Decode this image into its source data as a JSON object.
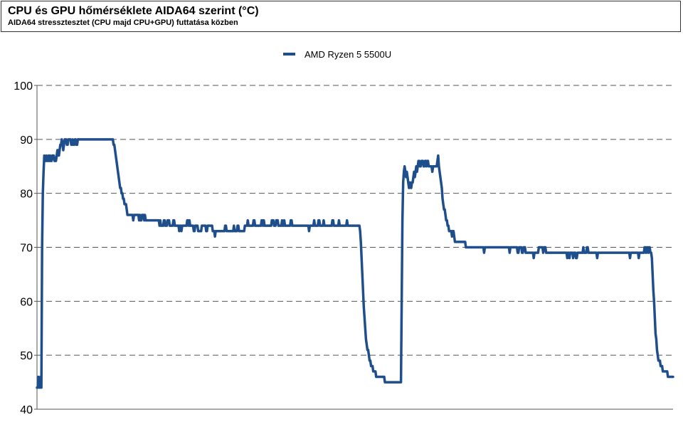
{
  "header": {
    "title": "CPU és GPU hőmérséklete AIDA64 szerint (°C)",
    "subtitle": "AIDA64 stressztesztet (CPU majd CPU+GPU) futtatása közben"
  },
  "chart_data": {
    "type": "line",
    "title": "CPU és GPU hőmérséklete AIDA64 szerint (°C)",
    "subtitle": "AIDA64 stressztesztet (CPU majd CPU+GPU) futtatása közben",
    "xlabel": "",
    "ylabel": "",
    "ylim": [
      40,
      100
    ],
    "yticks": [
      40,
      50,
      60,
      70,
      80,
      90,
      100
    ],
    "grid": "horizontal dashed",
    "legend_position": "top-center",
    "series": [
      {
        "name": "AMD Ryzen 5 5500U",
        "color": "#1f4e8c",
        "values": [
          44,
          44,
          46,
          44,
          44,
          46,
          44,
          70,
          80,
          84,
          87,
          86,
          86,
          87,
          86,
          86,
          87,
          86,
          87,
          86,
          86,
          87,
          87,
          87,
          86,
          86,
          86,
          87,
          88,
          88,
          87,
          88,
          89,
          89,
          90,
          89,
          88,
          89,
          90,
          90,
          90,
          89,
          89,
          90,
          90,
          90,
          90,
          89,
          89,
          90,
          89,
          89,
          90,
          90,
          89,
          89,
          90,
          90,
          90,
          90,
          90,
          90,
          90,
          90,
          90,
          90,
          90,
          90,
          90,
          90,
          90,
          90,
          90,
          90,
          90,
          90,
          90,
          90,
          90,
          90,
          90,
          90,
          90,
          90,
          90,
          90,
          90,
          90,
          90,
          90,
          90,
          90,
          90,
          90,
          90,
          90,
          90,
          90,
          90,
          90,
          90,
          90,
          90,
          90,
          90,
          89,
          89,
          88,
          87,
          86,
          85,
          84,
          83,
          82,
          81,
          81,
          80,
          80,
          79,
          79,
          78,
          78,
          78,
          77,
          76,
          76,
          76,
          76,
          76,
          76,
          76,
          76,
          75,
          76,
          76,
          76,
          76,
          76,
          76,
          76,
          75,
          76,
          75,
          75,
          76,
          76,
          76,
          75,
          76,
          75,
          75,
          75,
          75,
          75,
          75,
          75,
          75,
          75,
          75,
          75,
          75,
          75,
          75,
          75,
          75,
          75,
          75,
          75,
          74,
          75,
          74,
          74,
          74,
          74,
          75,
          75,
          74,
          74,
          74,
          75,
          75,
          75,
          74,
          74,
          74,
          74,
          74,
          75,
          75,
          74,
          74,
          74,
          74,
          74,
          74,
          73,
          74,
          74,
          73,
          74,
          74,
          74,
          74,
          74,
          74,
          74,
          75,
          75,
          74,
          75,
          74,
          74,
          74,
          74,
          74,
          73,
          73,
          74,
          74,
          74,
          74,
          73,
          73,
          73,
          73,
          73,
          74,
          74,
          74,
          74,
          74,
          74,
          73,
          73,
          74,
          74,
          74,
          74,
          74,
          74,
          74,
          73,
          73,
          73,
          72,
          73,
          73,
          73,
          73,
          73,
          73,
          73,
          73,
          73,
          73,
          73,
          73,
          73,
          74,
          74,
          73,
          73,
          73,
          73,
          73,
          73,
          73,
          73,
          73,
          73,
          74,
          73,
          73,
          73,
          73,
          74,
          74,
          73,
          73,
          73,
          73,
          73,
          73,
          73,
          73,
          74,
          74,
          74,
          74,
          75,
          74,
          74,
          74,
          74,
          74,
          74,
          74,
          75,
          75,
          74,
          74,
          74,
          74,
          74,
          74,
          74,
          74,
          74,
          75,
          75,
          74,
          75,
          74,
          74,
          74,
          74,
          74,
          74,
          74,
          74,
          74,
          74,
          75,
          75,
          75,
          74,
          74,
          74,
          75,
          75,
          75,
          74,
          74,
          74,
          74,
          74,
          75,
          74,
          74,
          75,
          74,
          74,
          74,
          74,
          74,
          74,
          74,
          74,
          75,
          75,
          74,
          74,
          74,
          74,
          74,
          74,
          74,
          74,
          74,
          74,
          74,
          74,
          74,
          74,
          74,
          74,
          74,
          74,
          74,
          74,
          74,
          74,
          74,
          73,
          74,
          74,
          74,
          74,
          74,
          74,
          75,
          74,
          74,
          74,
          74,
          74,
          75,
          75,
          74,
          74,
          74,
          74,
          74,
          75,
          74,
          74,
          74,
          74,
          74,
          74,
          74,
          74,
          74,
          74,
          74,
          75,
          75,
          74,
          74,
          74,
          74,
          74,
          74,
          74,
          75,
          74,
          74,
          74,
          74,
          74,
          74,
          74,
          74,
          74,
          74,
          75,
          74,
          74,
          74,
          74,
          74,
          74,
          74,
          74,
          74,
          74,
          74,
          74,
          74,
          74,
          74,
          74,
          74,
          73,
          71,
          68,
          65,
          62,
          59,
          57,
          55,
          53,
          52,
          51,
          51,
          50,
          49,
          49,
          48,
          48,
          48,
          47,
          47,
          47,
          47,
          46,
          46,
          46,
          46,
          46,
          46,
          46,
          46,
          46,
          46,
          46,
          46,
          45,
          45,
          45,
          45,
          45,
          45,
          45,
          45,
          45,
          45,
          45,
          45,
          45,
          45,
          45,
          45,
          45,
          45,
          45,
          45,
          45,
          45,
          45,
          60,
          75,
          82,
          84,
          85,
          84,
          83,
          84,
          83,
          82,
          81,
          82,
          82,
          81,
          82,
          82,
          83,
          84,
          83,
          84,
          85,
          84,
          85,
          86,
          86,
          85,
          85,
          86,
          86,
          86,
          85,
          85,
          86,
          86,
          85,
          86,
          86,
          85,
          85,
          85,
          85,
          85,
          84,
          85,
          85,
          85,
          85,
          85,
          85,
          86,
          87,
          85,
          84,
          83,
          82,
          81,
          79,
          78,
          77,
          77,
          76,
          75,
          75,
          74,
          74,
          73,
          73,
          73,
          73,
          72,
          73,
          73,
          72,
          71,
          71,
          71,
          71,
          71,
          71,
          71,
          71,
          71,
          71,
          71,
          71,
          71,
          71,
          71,
          70,
          70,
          70,
          70,
          70,
          70,
          70,
          70,
          70,
          70,
          70,
          70,
          70,
          70,
          70,
          70,
          70,
          70,
          70,
          70,
          70,
          70,
          70,
          70,
          70,
          69,
          70,
          70,
          70,
          70,
          70,
          70,
          70,
          70,
          70,
          70,
          70,
          70,
          70,
          70,
          70,
          70,
          70,
          70,
          70,
          70,
          70,
          70,
          70,
          70,
          70,
          70,
          70,
          70,
          70,
          70,
          70,
          70,
          70,
          70,
          69,
          70,
          70,
          70,
          70,
          70,
          70,
          70,
          70,
          70,
          70,
          69,
          69,
          70,
          70,
          70,
          70,
          69,
          69,
          70,
          70,
          70,
          69,
          69,
          69,
          69,
          69,
          69,
          69,
          69,
          69,
          69,
          69,
          68,
          69,
          69,
          69,
          69,
          69,
          69,
          70,
          70,
          70,
          70,
          70,
          70,
          69,
          70,
          70,
          70,
          69,
          69,
          69,
          69,
          69,
          69,
          69,
          69,
          69,
          69,
          69,
          69,
          69,
          69,
          69,
          69,
          69,
          69,
          69,
          69,
          69,
          69,
          69,
          69,
          69,
          69,
          69,
          69,
          69,
          68,
          69,
          69,
          68,
          69,
          69,
          69,
          69,
          68,
          69,
          69,
          69,
          68,
          68,
          69,
          69,
          69,
          69,
          69,
          69,
          69,
          69,
          70,
          69,
          69,
          69,
          69,
          70,
          70,
          69,
          69,
          69,
          69,
          69,
          69,
          69,
          69,
          69,
          69,
          69,
          69,
          68,
          69,
          69,
          69,
          69,
          69,
          69,
          69,
          69,
          69,
          69,
          69,
          69,
          69,
          69,
          69,
          69,
          69,
          69,
          69,
          69,
          69,
          69,
          69,
          69,
          69,
          69,
          69,
          69,
          69,
          69,
          69,
          69,
          69,
          69,
          69,
          69,
          69,
          69,
          69,
          69,
          69,
          69,
          69,
          69,
          68,
          69,
          69,
          69,
          69,
          69,
          69,
          69,
          69,
          69,
          69,
          69,
          68,
          69,
          69,
          69,
          69,
          69,
          69,
          69,
          70,
          70,
          69,
          70,
          70,
          69,
          70,
          70,
          69,
          69,
          68,
          65,
          62,
          60,
          57,
          54,
          53,
          51,
          50,
          49,
          49,
          49,
          48,
          48,
          48,
          47,
          47,
          47,
          47,
          47,
          47,
          47,
          46,
          46,
          46,
          46,
          46,
          46,
          46,
          46
        ]
      }
    ]
  }
}
